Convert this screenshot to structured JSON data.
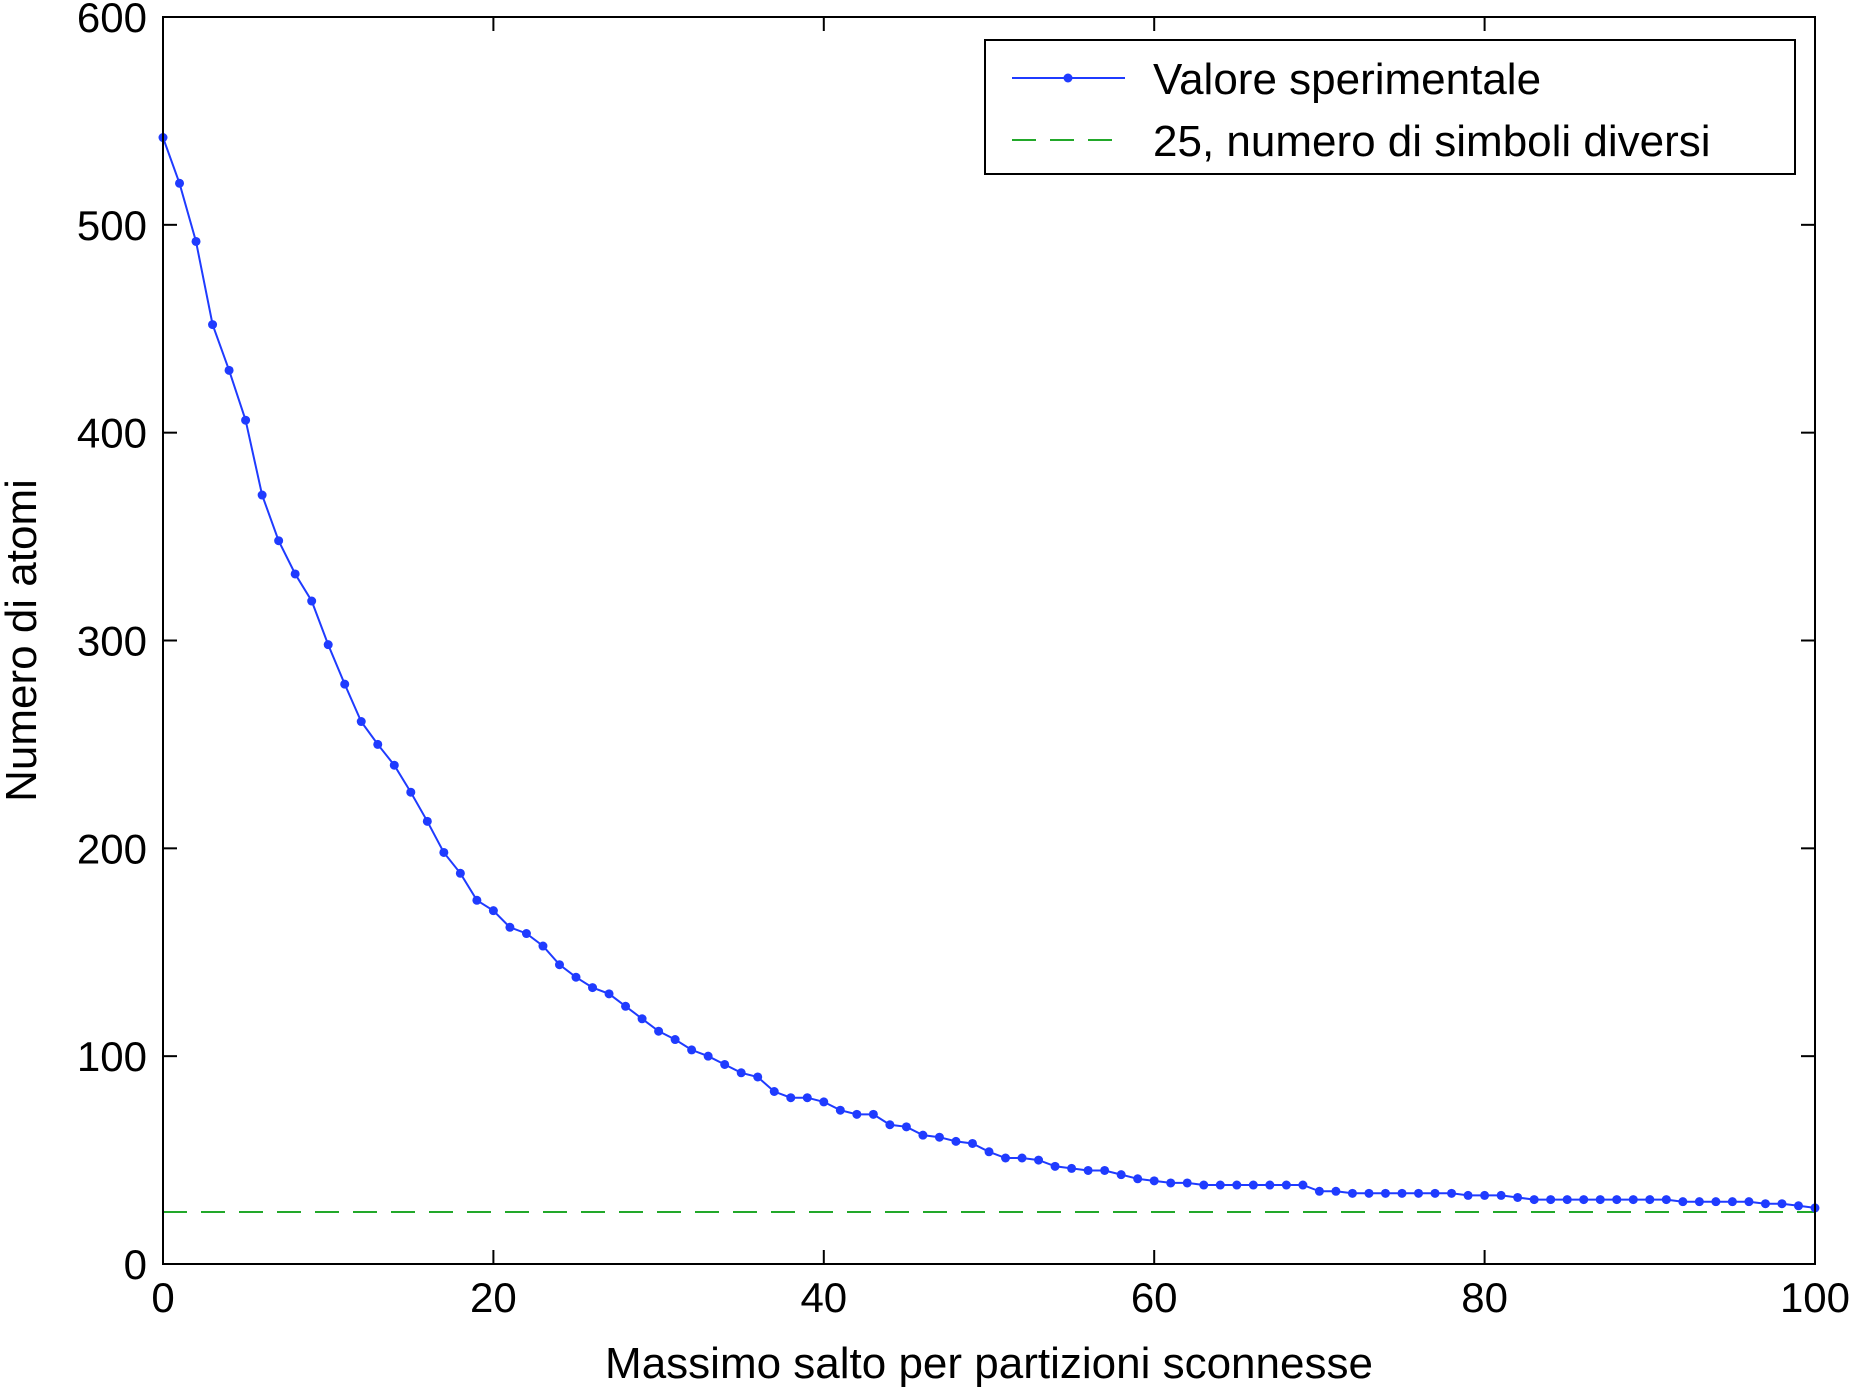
{
  "chart_data": {
    "type": "line",
    "title": "",
    "xlabel": "Massimo salto per partizioni sconnesse",
    "ylabel": "Numero di atomi",
    "xlim": [
      0,
      100
    ],
    "ylim": [
      0,
      600
    ],
    "xticks": [
      0,
      20,
      40,
      60,
      80,
      100
    ],
    "yticks": [
      0,
      100,
      200,
      300,
      400,
      500,
      600
    ],
    "xtick_labels": [
      "0",
      "20",
      "40",
      "60",
      "80",
      "100"
    ],
    "ytick_labels": [
      "0",
      "100",
      "200",
      "300",
      "400",
      "500",
      "600"
    ],
    "grid": false,
    "legend_position": "top-right",
    "series": [
      {
        "name": "Valore sperimentale",
        "color": "#1f3bff",
        "style": "solid-with-dots",
        "x": [
          0,
          1,
          2,
          3,
          4,
          5,
          6,
          7,
          8,
          9,
          10,
          11,
          12,
          13,
          14,
          15,
          16,
          17,
          18,
          19,
          20,
          21,
          22,
          23,
          24,
          25,
          26,
          27,
          28,
          29,
          30,
          31,
          32,
          33,
          34,
          35,
          36,
          37,
          38,
          39,
          40,
          41,
          42,
          43,
          44,
          45,
          46,
          47,
          48,
          49,
          50,
          51,
          52,
          53,
          54,
          55,
          56,
          57,
          58,
          59,
          60,
          61,
          62,
          63,
          64,
          65,
          66,
          67,
          68,
          69,
          70,
          71,
          72,
          73,
          74,
          75,
          76,
          77,
          78,
          79,
          80,
          81,
          82,
          83,
          84,
          85,
          86,
          87,
          88,
          89,
          90,
          91,
          92,
          93,
          94,
          95,
          96,
          97,
          98,
          99,
          100
        ],
        "y": [
          542,
          520,
          492,
          452,
          430,
          406,
          370,
          348,
          332,
          319,
          298,
          279,
          261,
          250,
          240,
          227,
          213,
          198,
          188,
          175,
          170,
          162,
          159,
          153,
          144,
          138,
          133,
          130,
          124,
          118,
          112,
          108,
          103,
          100,
          96,
          92,
          90,
          83,
          80,
          80,
          78,
          74,
          72,
          72,
          67,
          66,
          62,
          61,
          59,
          58,
          54,
          51,
          51,
          50,
          47,
          46,
          45,
          45,
          43,
          41,
          40,
          39,
          39,
          38,
          38,
          38,
          38,
          38,
          38,
          38,
          35,
          35,
          34,
          34,
          34,
          34,
          34,
          34,
          34,
          33,
          33,
          33,
          32,
          31,
          31,
          31,
          31,
          31,
          31,
          31,
          31,
          31,
          30,
          30,
          30,
          30,
          30,
          29,
          29,
          28,
          27
        ]
      },
      {
        "name": "25, numero di simboli diversi",
        "color": "#22a82a",
        "style": "dashed",
        "x": [
          0,
          100
        ],
        "y": [
          25,
          25
        ]
      }
    ]
  }
}
